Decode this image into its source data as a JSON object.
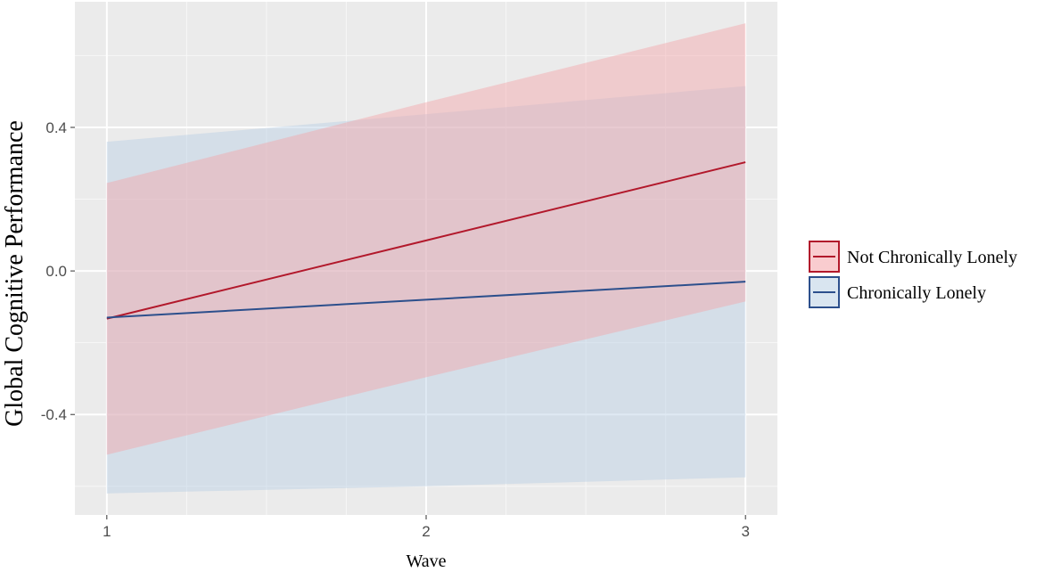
{
  "chart_data": {
    "type": "line",
    "title": "",
    "xlabel": "Wave",
    "ylabel": "Global Cognitive Performance",
    "x": [
      1,
      2,
      3
    ],
    "x_ticks": [
      1,
      2,
      3
    ],
    "x_tick_labels": [
      "1",
      "2",
      "3"
    ],
    "xlim": [
      0.9,
      3.1
    ],
    "y_ticks": [
      -0.4,
      0.0,
      0.4
    ],
    "y_tick_labels": [
      "-0.4",
      "0.0",
      "0.4"
    ],
    "ylim": [
      -0.68,
      0.75
    ],
    "grid": true,
    "legend_position": "right",
    "series": [
      {
        "name": "Not Chronically Lonely",
        "color": "#b2182b",
        "fill": "#f4a3a8",
        "values": [
          -0.133,
          0.085,
          0.303
        ],
        "lower": [
          -0.512,
          -0.296,
          -0.085
        ],
        "upper": [
          0.245,
          0.47,
          0.69
        ]
      },
      {
        "name": "Chronically Lonely",
        "color": "#2c4f8c",
        "fill": "#b9cfe4",
        "values": [
          -0.13,
          -0.08,
          -0.03
        ],
        "lower": [
          -0.62,
          -0.6,
          -0.575
        ],
        "upper": [
          0.36,
          0.437,
          0.515
        ]
      }
    ]
  }
}
